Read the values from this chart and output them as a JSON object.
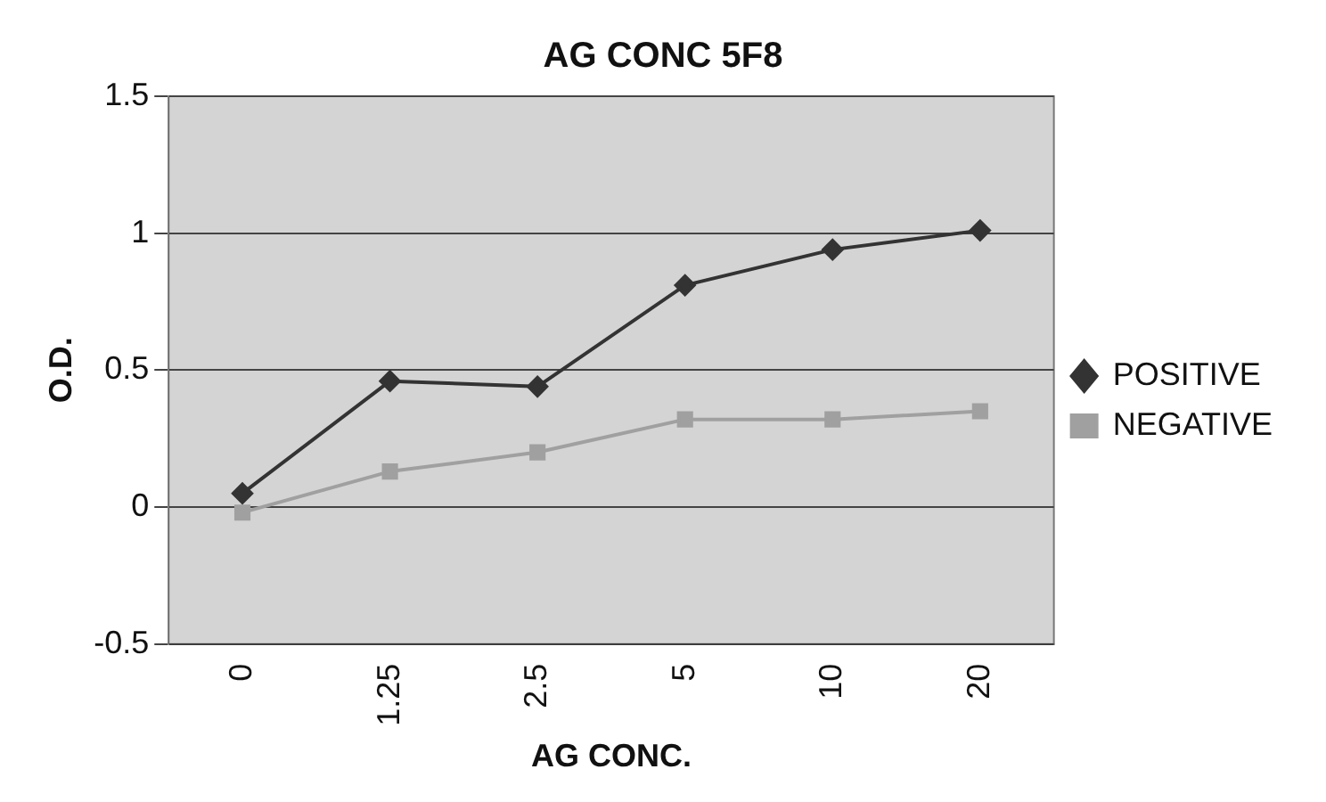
{
  "chart_data": {
    "type": "line",
    "title": "AG CONC 5F8",
    "xlabel": "AG CONC.",
    "ylabel": "O.D.",
    "categories": [
      "0",
      "1.25",
      "2.5",
      "5",
      "10",
      "20"
    ],
    "series": [
      {
        "name": "POSITIVE",
        "color": "#333333",
        "marker": "diamond",
        "values": [
          0.05,
          0.46,
          0.44,
          0.81,
          0.94,
          1.01
        ]
      },
      {
        "name": "NEGATIVE",
        "color": "#a0a0a0",
        "marker": "square",
        "values": [
          -0.02,
          0.13,
          0.2,
          0.32,
          0.32,
          0.35
        ]
      }
    ],
    "ylim": [
      -0.5,
      1.5
    ],
    "yticks": [
      -0.5,
      0,
      0.5,
      1,
      1.5
    ],
    "grid": "y",
    "legend": "right"
  }
}
